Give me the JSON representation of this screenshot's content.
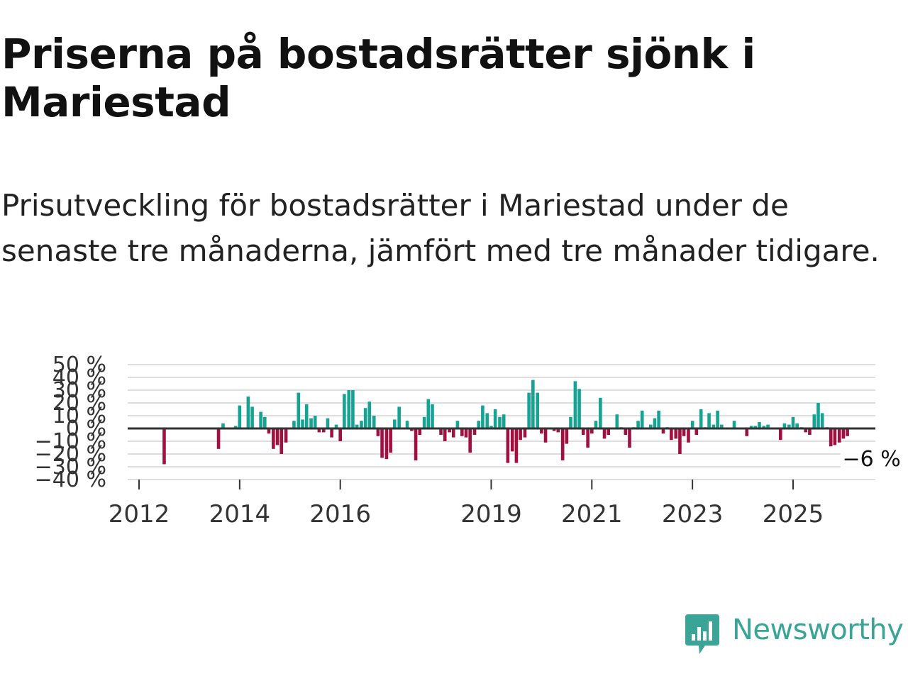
{
  "header": {
    "title": "Priserna på bostadsrätter sjönk i Mariestad",
    "subtitle": "Prisutveckling för bostadsrätter i Mariestad under de senaste tre månaderna, jämfört med tre månader tidigare."
  },
  "colors": {
    "positive": "#16a394",
    "negative": "#a01140",
    "zero_line": "#333333",
    "grid": "#dddddd",
    "brand": "#3aa597"
  },
  "brand": {
    "name": "Newsworthy",
    "logo_icon": "bar-chart-speech-bubble-icon"
  },
  "chart_data": {
    "type": "bar",
    "title": "Priserna på bostadsrätter sjönk i Mariestad",
    "xlabel": "",
    "ylabel": "",
    "ylim": [
      -40,
      50
    ],
    "y_ticks": [
      {
        "value": 50,
        "label": "50 %"
      },
      {
        "value": 40,
        "label": "40 %"
      },
      {
        "value": 30,
        "label": "30 %"
      },
      {
        "value": 20,
        "label": "20 %"
      },
      {
        "value": 10,
        "label": "10 %"
      },
      {
        "value": 0,
        "label": "0 %"
      },
      {
        "value": -10,
        "label": "−10 %"
      },
      {
        "value": -20,
        "label": "−20 %"
      },
      {
        "value": -30,
        "label": "−30 %"
      },
      {
        "value": -40,
        "label": "−40 %"
      }
    ],
    "x_ticks": [
      {
        "value": 2012.0,
        "label": "2012"
      },
      {
        "value": 2014.0,
        "label": "2014"
      },
      {
        "value": 2016.0,
        "label": "2016"
      },
      {
        "value": 2019.0,
        "label": "2019"
      },
      {
        "value": 2021.0,
        "label": "2021"
      },
      {
        "value": 2023.0,
        "label": "2023"
      },
      {
        "value": 2025.0,
        "label": "2025"
      }
    ],
    "x_range": [
      2011.83,
      2027.0
    ],
    "bar_width_years": 0.065,
    "grid": true,
    "annotation": {
      "x": 2026.08,
      "value": -6,
      "label": "−6 %"
    },
    "series": [
      {
        "name": "Prisutveckling",
        "points": [
          {
            "x": 2012.5,
            "v": -28
          },
          {
            "x": 2013.58,
            "v": -16
          },
          {
            "x": 2013.67,
            "v": 4
          },
          {
            "x": 2013.92,
            "v": 2
          },
          {
            "x": 2014.0,
            "v": 18
          },
          {
            "x": 2014.17,
            "v": 25
          },
          {
            "x": 2014.25,
            "v": 17
          },
          {
            "x": 2014.42,
            "v": 13
          },
          {
            "x": 2014.5,
            "v": 9
          },
          {
            "x": 2014.58,
            "v": -4
          },
          {
            "x": 2014.67,
            "v": -16
          },
          {
            "x": 2014.75,
            "v": -13
          },
          {
            "x": 2014.83,
            "v": -20
          },
          {
            "x": 2014.92,
            "v": -11
          },
          {
            "x": 2015.08,
            "v": 6
          },
          {
            "x": 2015.17,
            "v": 28
          },
          {
            "x": 2015.25,
            "v": 7
          },
          {
            "x": 2015.33,
            "v": 19
          },
          {
            "x": 2015.42,
            "v": 8
          },
          {
            "x": 2015.5,
            "v": 10
          },
          {
            "x": 2015.58,
            "v": -3
          },
          {
            "x": 2015.67,
            "v": -3
          },
          {
            "x": 2015.75,
            "v": 8
          },
          {
            "x": 2015.83,
            "v": -7
          },
          {
            "x": 2015.92,
            "v": 3
          },
          {
            "x": 2016.0,
            "v": -10
          },
          {
            "x": 2016.08,
            "v": 27
          },
          {
            "x": 2016.17,
            "v": 30
          },
          {
            "x": 2016.25,
            "v": 30
          },
          {
            "x": 2016.33,
            "v": 3
          },
          {
            "x": 2016.42,
            "v": 6
          },
          {
            "x": 2016.5,
            "v": 16
          },
          {
            "x": 2016.58,
            "v": 21
          },
          {
            "x": 2016.67,
            "v": 10
          },
          {
            "x": 2016.75,
            "v": -6
          },
          {
            "x": 2016.83,
            "v": -23
          },
          {
            "x": 2016.92,
            "v": -24
          },
          {
            "x": 2017.0,
            "v": -19
          },
          {
            "x": 2017.08,
            "v": 7
          },
          {
            "x": 2017.17,
            "v": 17
          },
          {
            "x": 2017.33,
            "v": 6
          },
          {
            "x": 2017.42,
            "v": -2
          },
          {
            "x": 2017.5,
            "v": -25
          },
          {
            "x": 2017.58,
            "v": -5
          },
          {
            "x": 2017.67,
            "v": 9
          },
          {
            "x": 2017.75,
            "v": 23
          },
          {
            "x": 2017.83,
            "v": 19
          },
          {
            "x": 2018.0,
            "v": -5
          },
          {
            "x": 2018.08,
            "v": -10
          },
          {
            "x": 2018.17,
            "v": -3
          },
          {
            "x": 2018.25,
            "v": -7
          },
          {
            "x": 2018.33,
            "v": 6
          },
          {
            "x": 2018.42,
            "v": -6
          },
          {
            "x": 2018.5,
            "v": -7
          },
          {
            "x": 2018.58,
            "v": -19
          },
          {
            "x": 2018.67,
            "v": -5
          },
          {
            "x": 2018.75,
            "v": 6
          },
          {
            "x": 2018.83,
            "v": 18
          },
          {
            "x": 2018.92,
            "v": 12
          },
          {
            "x": 2019.0,
            "v": 2
          },
          {
            "x": 2019.08,
            "v": 15
          },
          {
            "x": 2019.17,
            "v": 9
          },
          {
            "x": 2019.25,
            "v": 11
          },
          {
            "x": 2019.33,
            "v": -27
          },
          {
            "x": 2019.42,
            "v": -18
          },
          {
            "x": 2019.5,
            "v": -27
          },
          {
            "x": 2019.58,
            "v": -9
          },
          {
            "x": 2019.67,
            "v": -7
          },
          {
            "x": 2019.75,
            "v": 28
          },
          {
            "x": 2019.83,
            "v": 38
          },
          {
            "x": 2019.92,
            "v": 28
          },
          {
            "x": 2020.0,
            "v": -4
          },
          {
            "x": 2020.08,
            "v": -11
          },
          {
            "x": 2020.25,
            "v": -2
          },
          {
            "x": 2020.33,
            "v": -3
          },
          {
            "x": 2020.42,
            "v": -25
          },
          {
            "x": 2020.5,
            "v": -12
          },
          {
            "x": 2020.58,
            "v": 9
          },
          {
            "x": 2020.67,
            "v": 37
          },
          {
            "x": 2020.75,
            "v": 31
          },
          {
            "x": 2020.83,
            "v": -5
          },
          {
            "x": 2020.92,
            "v": -15
          },
          {
            "x": 2021.0,
            "v": -4
          },
          {
            "x": 2021.08,
            "v": 6
          },
          {
            "x": 2021.17,
            "v": 24
          },
          {
            "x": 2021.25,
            "v": -8
          },
          {
            "x": 2021.33,
            "v": -5
          },
          {
            "x": 2021.5,
            "v": 11
          },
          {
            "x": 2021.58,
            "v": 1
          },
          {
            "x": 2021.67,
            "v": -5
          },
          {
            "x": 2021.75,
            "v": -15
          },
          {
            "x": 2021.83,
            "v": 1
          },
          {
            "x": 2021.92,
            "v": 6
          },
          {
            "x": 2022.0,
            "v": 14
          },
          {
            "x": 2022.17,
            "v": 3
          },
          {
            "x": 2022.25,
            "v": 8
          },
          {
            "x": 2022.33,
            "v": 14
          },
          {
            "x": 2022.42,
            "v": -4
          },
          {
            "x": 2022.5,
            "v": 1
          },
          {
            "x": 2022.58,
            "v": -9
          },
          {
            "x": 2022.67,
            "v": -8
          },
          {
            "x": 2022.75,
            "v": -20
          },
          {
            "x": 2022.83,
            "v": -6
          },
          {
            "x": 2022.92,
            "v": -11
          },
          {
            "x": 2023.0,
            "v": 6
          },
          {
            "x": 2023.08,
            "v": -5
          },
          {
            "x": 2023.17,
            "v": 15
          },
          {
            "x": 2023.25,
            "v": 1
          },
          {
            "x": 2023.33,
            "v": 12
          },
          {
            "x": 2023.42,
            "v": 3
          },
          {
            "x": 2023.5,
            "v": 14
          },
          {
            "x": 2023.58,
            "v": 3
          },
          {
            "x": 2023.83,
            "v": 6
          },
          {
            "x": 2024.08,
            "v": -6
          },
          {
            "x": 2024.17,
            "v": 2
          },
          {
            "x": 2024.25,
            "v": 2
          },
          {
            "x": 2024.33,
            "v": 5
          },
          {
            "x": 2024.42,
            "v": 2
          },
          {
            "x": 2024.5,
            "v": 3
          },
          {
            "x": 2024.75,
            "v": -9
          },
          {
            "x": 2024.83,
            "v": 4
          },
          {
            "x": 2024.92,
            "v": 3
          },
          {
            "x": 2025.0,
            "v": 9
          },
          {
            "x": 2025.08,
            "v": 4
          },
          {
            "x": 2025.17,
            "v": 1
          },
          {
            "x": 2025.25,
            "v": -3
          },
          {
            "x": 2025.33,
            "v": -5
          },
          {
            "x": 2025.42,
            "v": 11
          },
          {
            "x": 2025.5,
            "v": 20
          },
          {
            "x": 2025.58,
            "v": 12
          },
          {
            "x": 2025.67,
            "v": 1
          },
          {
            "x": 2025.75,
            "v": -14
          },
          {
            "x": 2025.83,
            "v": -13
          },
          {
            "x": 2025.92,
            "v": -11
          },
          {
            "x": 2026.0,
            "v": -8
          },
          {
            "x": 2026.08,
            "v": -6
          }
        ]
      }
    ]
  }
}
